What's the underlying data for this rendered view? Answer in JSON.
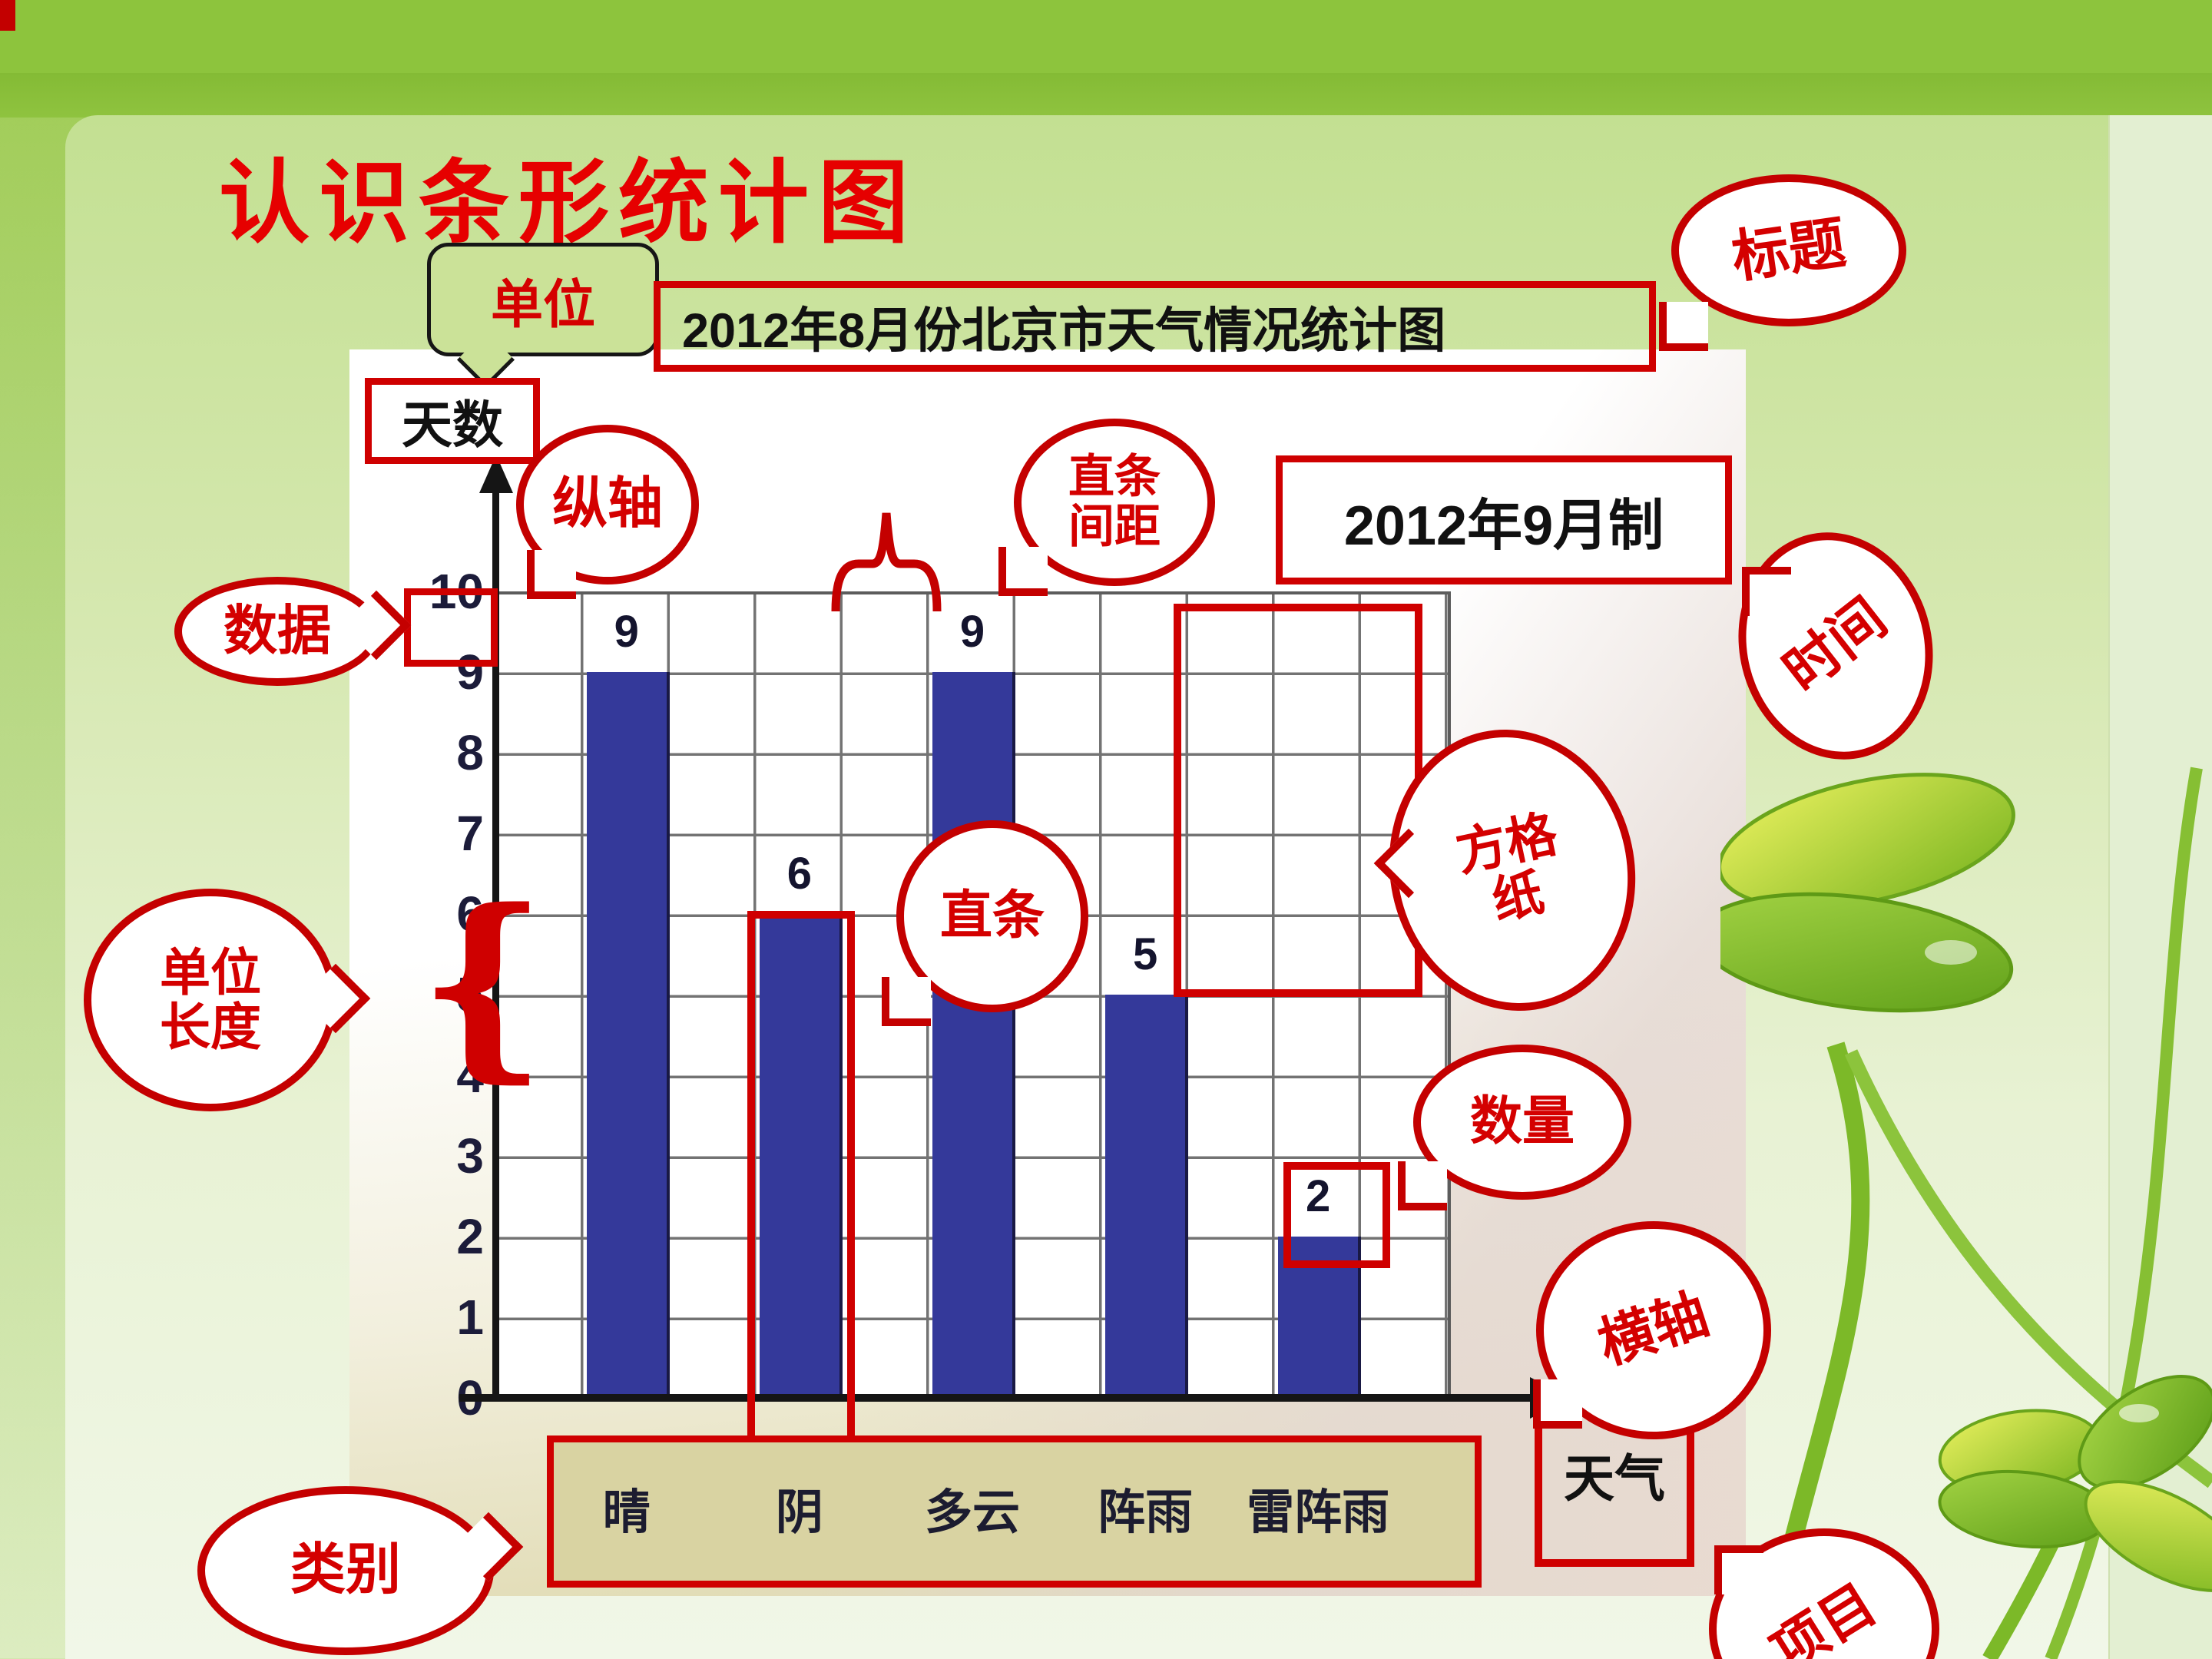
{
  "slide": {
    "heading": "认识条形统计图"
  },
  "chart": {
    "title": "2012年8月份北京市天气情况统计图",
    "made_label": "2012年9月制",
    "unit_label": "天数",
    "axis_label": "天气"
  },
  "unit_box": {
    "label": "单位"
  },
  "callouts": {
    "biaoti": {
      "label": "标题"
    },
    "zongzhou": {
      "label": "纵轴"
    },
    "zhitiao_jianju": {
      "line1": "直条",
      "line2": "间距"
    },
    "shijian": {
      "label": "时间"
    },
    "shuju": {
      "label": "数据"
    },
    "fangezhi": {
      "line1": "方格",
      "line2": "纸"
    },
    "danwei_changdu": {
      "line1": "单位",
      "line2": "长度"
    },
    "zhitiao": {
      "label": "直条"
    },
    "shuliang": {
      "label": "数量"
    },
    "hengzhou": {
      "label": "横轴"
    },
    "leibie": {
      "label": "类别"
    },
    "xiangmu": {
      "label": "项目"
    }
  },
  "colors": {
    "accent_red": "#cc0000",
    "bar_blue": "#34399a",
    "label_panel_tan": "#d9d3a2"
  },
  "chart_data": {
    "type": "bar",
    "title": "2012年8月份北京市天气情况统计图",
    "categories": [
      "晴",
      "阴",
      "多云",
      "阵雨",
      "雷阵雨"
    ],
    "values": [
      9,
      6,
      9,
      5,
      2
    ],
    "unit": "天数",
    "xlabel": "天气",
    "ylim": [
      0,
      10
    ],
    "yticks": [
      "0",
      "1",
      "2",
      "3",
      "4",
      "5",
      "6",
      "7",
      "8",
      "9",
      "10"
    ],
    "grid": true,
    "legend": false,
    "bar_color": "#34399a",
    "made": "2012年9月制"
  }
}
